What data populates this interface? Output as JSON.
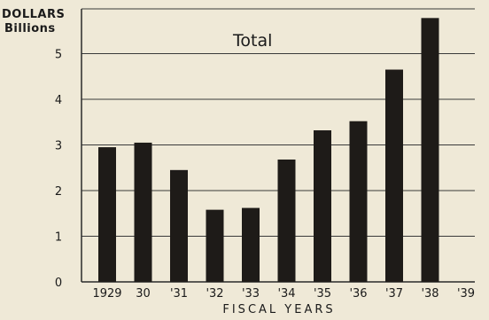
{
  "chart_data": {
    "type": "bar",
    "title": "Total",
    "ylabel_line1": "DOLLARS",
    "ylabel_line2": "Billions",
    "xlabel": "FISCAL YEARS",
    "categories": [
      "1929",
      "30",
      "'31",
      "'32",
      "'33",
      "'34",
      "'35",
      "'36",
      "'37",
      "'38",
      "'39"
    ],
    "values": [
      2.95,
      3.05,
      2.45,
      1.58,
      1.62,
      2.68,
      3.32,
      3.52,
      4.65,
      5.78,
      null
    ],
    "yticks": [
      0,
      1,
      2,
      3,
      4,
      5
    ],
    "ylim": [
      0,
      6
    ],
    "grid": true,
    "colors": {
      "bar": "#1e1b18",
      "grid": "#3a3a3a",
      "background": "#efe9d7"
    }
  }
}
